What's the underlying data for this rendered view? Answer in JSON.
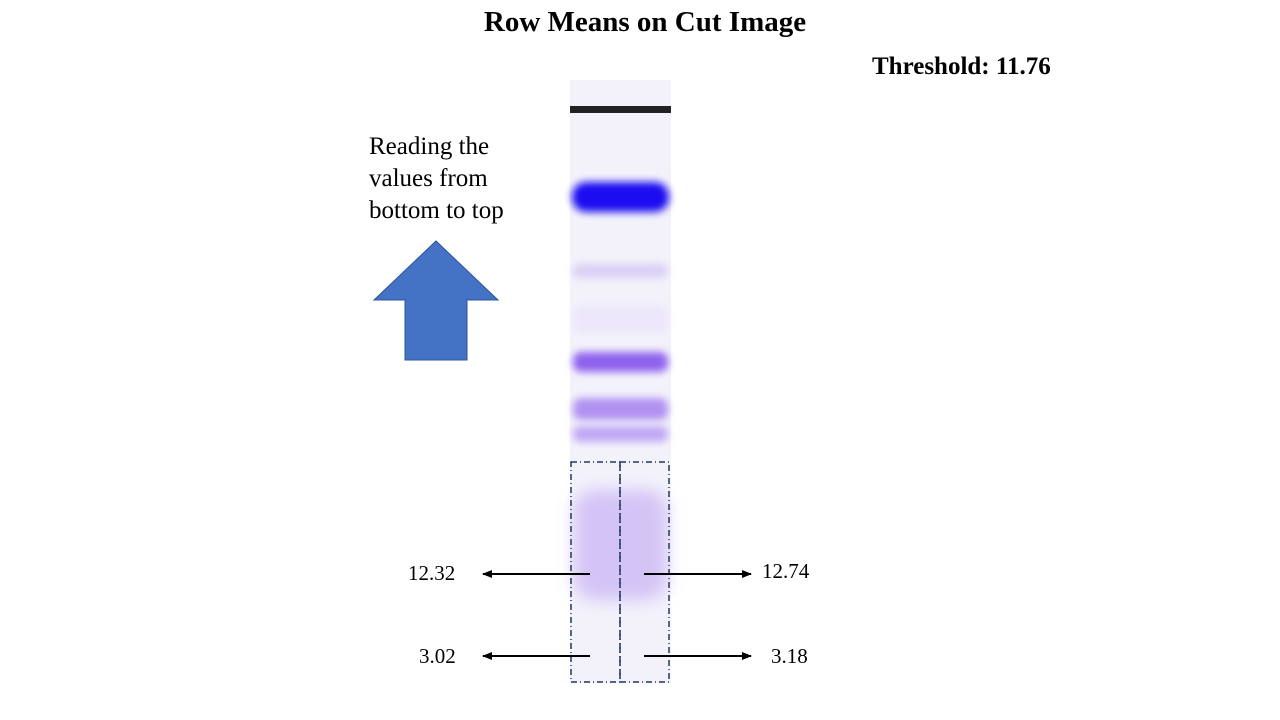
{
  "title": "Row Means on Cut Image",
  "threshold": {
    "label": "Threshold:",
    "value": "11.76"
  },
  "instruction": {
    "lines": [
      "Reading the",
      "values from",
      "bottom to top"
    ]
  },
  "arrow_icon": "up-arrow-icon",
  "gel": {
    "band_colors": {
      "lane_background": "#f3f2fb",
      "well_line": "#222222",
      "main_band": "#1a10f0",
      "faint_band": "#d9d0f5",
      "medium_band": "#8f62ee",
      "light_band": "#b192f1",
      "cut_region": "#d4c4f6"
    }
  },
  "measurements": {
    "left": [
      {
        "value": "12.32"
      },
      {
        "value": "3.02"
      }
    ],
    "right": [
      {
        "value": "12.74"
      },
      {
        "value": "3.18"
      }
    ]
  },
  "colors": {
    "arrow_fill": "#4472c4",
    "arrow_stroke": "#2f5597",
    "dash_box": "#1f3864"
  }
}
